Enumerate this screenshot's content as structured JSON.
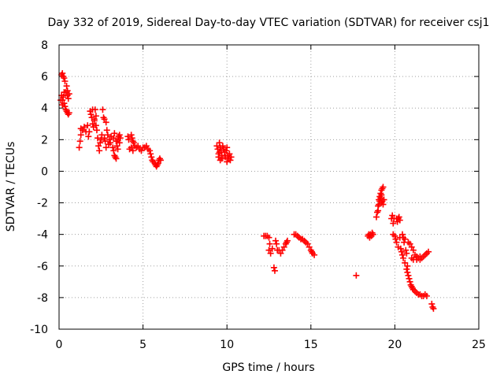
{
  "chart_data": {
    "type": "scatter",
    "title": "Day 332 of 2019, Sidereal Day-to-day VTEC variation (SDTVAR) for receiver csj1",
    "xlabel": "GPS time / hours",
    "ylabel": "SDTVAR / TECUs",
    "xlim": [
      0,
      25
    ],
    "ylim": [
      -10,
      8
    ],
    "grid": true,
    "marker": "plus",
    "marker_color": "#ff0000",
    "x_ticks": [
      0,
      5,
      10,
      15,
      20,
      25
    ],
    "y_ticks": [
      -10,
      -8,
      -6,
      -4,
      -2,
      0,
      2,
      4,
      6,
      8
    ],
    "x_tick_labels": [
      "0",
      "5",
      "10",
      "15",
      "20",
      "25"
    ],
    "y_tick_labels": [
      "-10",
      "-8",
      "-6",
      "-4",
      "-2",
      "0",
      "2",
      "4",
      "6",
      "8"
    ],
    "series": [
      {
        "name": "SDTVAR",
        "points": [
          [
            0.15,
            6.1
          ],
          [
            0.2,
            6.2
          ],
          [
            0.25,
            6.0
          ],
          [
            0.3,
            5.9
          ],
          [
            0.35,
            5.7
          ],
          [
            0.3,
            5.0
          ],
          [
            0.25,
            4.7
          ],
          [
            0.2,
            4.5
          ],
          [
            0.3,
            4.3
          ],
          [
            0.35,
            4.1
          ],
          [
            0.4,
            3.9
          ],
          [
            0.45,
            3.8
          ],
          [
            0.5,
            3.7
          ],
          [
            0.55,
            3.6
          ],
          [
            0.6,
            3.7
          ],
          [
            0.4,
            5.0
          ],
          [
            0.45,
            5.4
          ],
          [
            0.5,
            4.8
          ],
          [
            0.55,
            4.6
          ],
          [
            0.15,
            4.8
          ],
          [
            0.1,
            4.5
          ],
          [
            0.2,
            4.2
          ],
          [
            0.6,
            4.9
          ],
          [
            0.5,
            5.1
          ],
          [
            1.2,
            1.5
          ],
          [
            1.25,
            1.9
          ],
          [
            1.3,
            2.3
          ],
          [
            1.3,
            2.7
          ],
          [
            1.4,
            2.6
          ],
          [
            1.5,
            2.8
          ],
          [
            1.6,
            2.5
          ],
          [
            1.7,
            2.9
          ],
          [
            1.75,
            2.2
          ],
          [
            1.8,
            2.5
          ],
          [
            1.85,
            3.8
          ],
          [
            1.9,
            3.6
          ],
          [
            1.95,
            3.4
          ],
          [
            2.0,
            3.0
          ],
          [
            2.05,
            2.8
          ],
          [
            2.1,
            3.2
          ],
          [
            2.15,
            3.9
          ],
          [
            2.2,
            3.5
          ],
          [
            2.25,
            2.6
          ],
          [
            2.3,
            2.1
          ],
          [
            2.0,
            3.9
          ],
          [
            2.1,
            3.3
          ],
          [
            2.2,
            2.9
          ],
          [
            2.35,
            1.6
          ],
          [
            2.4,
            1.3
          ],
          [
            2.45,
            1.8
          ],
          [
            2.5,
            2.0
          ],
          [
            2.55,
            2.3
          ],
          [
            2.6,
            3.9
          ],
          [
            2.65,
            3.4
          ],
          [
            2.7,
            3.3
          ],
          [
            2.8,
            3.1
          ],
          [
            2.85,
            2.6
          ],
          [
            2.9,
            2.3
          ],
          [
            3.0,
            2.0
          ],
          [
            3.05,
            1.8
          ],
          [
            3.1,
            2.2
          ],
          [
            2.7,
            2.1
          ],
          [
            2.75,
            1.9
          ],
          [
            2.8,
            1.5
          ],
          [
            2.95,
            1.7
          ],
          [
            3.2,
            1.5
          ],
          [
            3.25,
            1.3
          ],
          [
            3.3,
            1.0
          ],
          [
            3.35,
            0.9
          ],
          [
            3.4,
            0.8
          ],
          [
            3.45,
            1.6
          ],
          [
            3.5,
            2.0
          ],
          [
            3.55,
            2.2
          ],
          [
            3.6,
            1.8
          ],
          [
            3.3,
            2.4
          ],
          [
            3.25,
            2.1
          ],
          [
            3.4,
            1.9
          ],
          [
            3.5,
            1.4
          ],
          [
            3.6,
            2.3
          ],
          [
            3.65,
            2.1
          ],
          [
            4.1,
            2.2
          ],
          [
            4.15,
            2.0
          ],
          [
            4.2,
            1.4
          ],
          [
            4.3,
            2.3
          ],
          [
            4.35,
            2.1
          ],
          [
            4.4,
            1.9
          ],
          [
            4.45,
            1.8
          ],
          [
            4.5,
            1.6
          ],
          [
            4.6,
            1.5
          ],
          [
            4.7,
            1.6
          ],
          [
            4.8,
            1.4
          ],
          [
            4.9,
            1.3
          ],
          [
            5.0,
            1.5
          ],
          [
            5.1,
            1.5
          ],
          [
            5.2,
            1.6
          ],
          [
            5.3,
            1.4
          ],
          [
            5.4,
            1.3
          ],
          [
            5.45,
            1.1
          ],
          [
            5.5,
            0.9
          ],
          [
            5.55,
            0.7
          ],
          [
            5.6,
            0.6
          ],
          [
            5.7,
            0.5
          ],
          [
            5.75,
            0.4
          ],
          [
            5.8,
            0.3
          ],
          [
            5.85,
            0.4
          ],
          [
            5.9,
            0.5
          ],
          [
            5.95,
            0.7
          ],
          [
            6.0,
            0.8
          ],
          [
            6.05,
            0.7
          ],
          [
            4.3,
            1.5
          ],
          [
            4.4,
            1.3
          ],
          [
            9.4,
            1.6
          ],
          [
            9.45,
            1.4
          ],
          [
            9.5,
            1.1
          ],
          [
            9.5,
            0.9
          ],
          [
            9.55,
            1.2
          ],
          [
            9.6,
            1.5
          ],
          [
            9.65,
            1.3
          ],
          [
            9.7,
            1.0
          ],
          [
            9.75,
            1.6
          ],
          [
            9.8,
            1.4
          ],
          [
            9.85,
            1.2
          ],
          [
            9.9,
            0.9
          ],
          [
            9.95,
            1.3
          ],
          [
            10.0,
            1.5
          ],
          [
            10.05,
            1.0
          ],
          [
            10.1,
            0.8
          ],
          [
            10.15,
            1.1
          ],
          [
            10.2,
            0.7
          ],
          [
            10.25,
            0.9
          ],
          [
            9.6,
            0.7
          ],
          [
            9.7,
            0.8
          ],
          [
            10.0,
            0.6
          ],
          [
            9.55,
            1.8
          ],
          [
            12.2,
            -4.1
          ],
          [
            12.3,
            -4.1
          ],
          [
            12.4,
            -4.1
          ],
          [
            12.5,
            -4.2
          ],
          [
            12.5,
            -5.0
          ],
          [
            12.55,
            -4.6
          ],
          [
            12.6,
            -5.2
          ],
          [
            12.7,
            -4.9
          ],
          [
            12.8,
            -6.1
          ],
          [
            12.85,
            -6.3
          ],
          [
            12.9,
            -4.4
          ],
          [
            12.95,
            -4.6
          ],
          [
            13.0,
            -5.0
          ],
          [
            13.1,
            -5.0
          ],
          [
            13.2,
            -5.2
          ],
          [
            13.3,
            -5.0
          ],
          [
            13.4,
            -4.8
          ],
          [
            13.5,
            -4.6
          ],
          [
            13.55,
            -4.5
          ],
          [
            13.6,
            -4.4
          ],
          [
            14.0,
            -4.0
          ],
          [
            14.1,
            -4.0
          ],
          [
            14.2,
            -4.1
          ],
          [
            14.3,
            -4.2
          ],
          [
            14.4,
            -4.3
          ],
          [
            14.5,
            -4.3
          ],
          [
            14.6,
            -4.4
          ],
          [
            14.7,
            -4.5
          ],
          [
            14.8,
            -4.6
          ],
          [
            14.9,
            -4.8
          ],
          [
            15.0,
            -5.0
          ],
          [
            15.05,
            -5.1
          ],
          [
            15.1,
            -5.2
          ],
          [
            15.2,
            -5.3
          ],
          [
            17.7,
            -6.6
          ],
          [
            18.4,
            -4.1
          ],
          [
            18.45,
            -4.0
          ],
          [
            18.5,
            -4.2
          ],
          [
            18.55,
            -4.0
          ],
          [
            18.6,
            -4.1
          ],
          [
            18.65,
            -3.9
          ],
          [
            18.7,
            -4.0
          ],
          [
            18.9,
            -2.9
          ],
          [
            18.95,
            -2.6
          ],
          [
            19.0,
            -2.2
          ],
          [
            19.05,
            -1.8
          ],
          [
            19.1,
            -1.6
          ],
          [
            19.15,
            -1.4
          ],
          [
            19.2,
            -1.2
          ],
          [
            19.25,
            -1.1
          ],
          [
            19.3,
            -1.0
          ],
          [
            19.0,
            -2.5
          ],
          [
            19.05,
            -2.1
          ],
          [
            19.1,
            -1.9
          ],
          [
            19.15,
            -1.7
          ],
          [
            19.2,
            -2.0
          ],
          [
            19.25,
            -1.9
          ],
          [
            19.3,
            -2.1
          ],
          [
            19.35,
            -1.8
          ],
          [
            19.2,
            -1.5
          ],
          [
            19.8,
            -3.0
          ],
          [
            19.85,
            -2.8
          ],
          [
            19.9,
            -3.3
          ],
          [
            19.95,
            -3.0
          ],
          [
            19.9,
            -4.0
          ],
          [
            20.0,
            -4.1
          ],
          [
            20.05,
            -4.3
          ],
          [
            20.1,
            -3.0
          ],
          [
            20.15,
            -3.2
          ],
          [
            20.2,
            -3.0
          ],
          [
            20.25,
            -2.9
          ],
          [
            20.3,
            -3.1
          ],
          [
            20.1,
            -4.5
          ],
          [
            20.2,
            -4.8
          ],
          [
            20.3,
            -4.2
          ],
          [
            20.35,
            -4.9
          ],
          [
            20.4,
            -5.1
          ],
          [
            20.45,
            -5.3
          ],
          [
            20.5,
            -5.5
          ],
          [
            20.45,
            -4.0
          ],
          [
            20.5,
            -4.2
          ],
          [
            20.55,
            -4.5
          ],
          [
            20.6,
            -4.3
          ],
          [
            20.65,
            -5.0
          ],
          [
            20.7,
            -5.2
          ],
          [
            20.75,
            -6.0
          ],
          [
            20.8,
            -6.6
          ],
          [
            20.85,
            -6.8
          ],
          [
            20.9,
            -7.0
          ],
          [
            20.95,
            -7.2
          ],
          [
            21.0,
            -7.3
          ],
          [
            21.05,
            -7.4
          ],
          [
            21.1,
            -7.5
          ],
          [
            21.2,
            -7.6
          ],
          [
            21.3,
            -7.7
          ],
          [
            21.4,
            -7.8
          ],
          [
            21.5,
            -7.8
          ],
          [
            21.6,
            -7.9
          ],
          [
            21.7,
            -7.9
          ],
          [
            21.8,
            -7.8
          ],
          [
            21.9,
            -7.9
          ],
          [
            20.8,
            -4.5
          ],
          [
            20.9,
            -4.6
          ],
          [
            21.0,
            -4.8
          ],
          [
            21.1,
            -5.0
          ],
          [
            21.2,
            -5.3
          ],
          [
            21.3,
            -5.4
          ],
          [
            21.4,
            -5.5
          ],
          [
            21.5,
            -5.6
          ],
          [
            21.6,
            -5.5
          ],
          [
            21.7,
            -5.4
          ],
          [
            21.8,
            -5.3
          ],
          [
            21.9,
            -5.2
          ],
          [
            22.0,
            -5.1
          ],
          [
            21.0,
            -5.5
          ],
          [
            21.1,
            -5.6
          ],
          [
            20.6,
            -5.8
          ],
          [
            20.7,
            -6.2
          ],
          [
            20.75,
            -6.4
          ],
          [
            22.2,
            -8.4
          ],
          [
            22.25,
            -8.6
          ],
          [
            22.3,
            -8.7
          ],
          [
            21.3,
            -5.6
          ],
          [
            21.5,
            -5.4
          ]
        ]
      }
    ]
  }
}
